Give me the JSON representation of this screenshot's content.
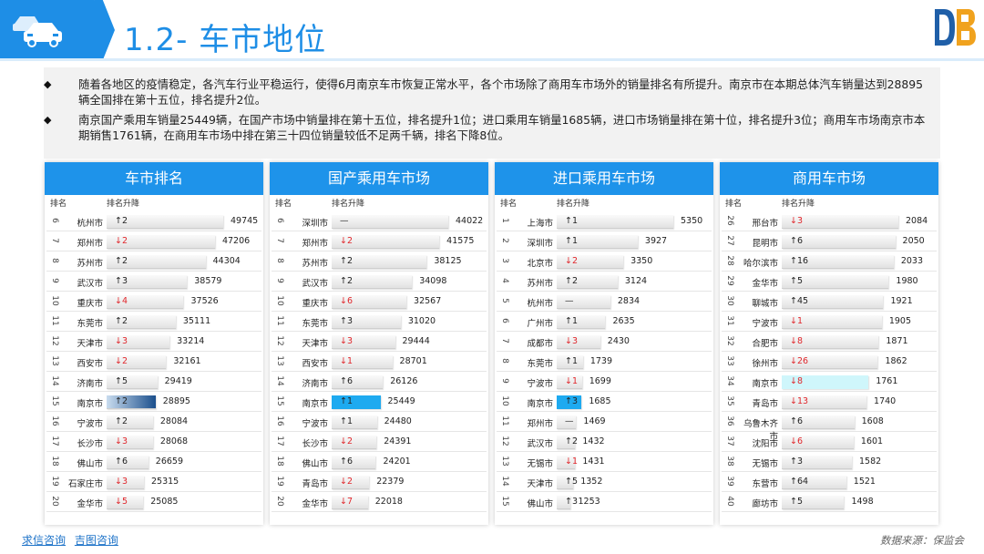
{
  "header": {
    "title": "1.2- 车市地位"
  },
  "intro": {
    "paragraphs": [
      "随着各地区的疫情稳定，各汽车行业平稳运行，使得6月南京车市恢复正常水平，各个市场除了商用车市场外的销量排名有所提升。南京市在本期总体汽车销量达到28895辆全国排在第十五位，排名提升2位。",
      "南京国产乘用车销量25449辆，在国产市场中销量排在第十五位，排名提升1位；进口乘用车销量1685辆，进口市场销量排在第十位，排名提升3位；商用车市场南京市本期销售1761辆，在商用车市场中排在第三十四位销量较低不足两千辆，排名下降8位。"
    ]
  },
  "panels": [
    {
      "title": "车市排名",
      "col_rank": "排名",
      "col_change": "排名升降",
      "highlight": "dark",
      "rows": [
        {
          "rank": "6",
          "city": "杭州市",
          "change": "↑2",
          "dir": "up",
          "value": 49745
        },
        {
          "rank": "7",
          "city": "郑州市",
          "change": "↓2",
          "dir": "down",
          "value": 47206
        },
        {
          "rank": "8",
          "city": "苏州市",
          "change": "↑2",
          "dir": "up",
          "value": 44304
        },
        {
          "rank": "9",
          "city": "武汉市",
          "change": "↑3",
          "dir": "up",
          "value": 38579
        },
        {
          "rank": "10",
          "city": "重庆市",
          "change": "↓4",
          "dir": "down",
          "value": 37526
        },
        {
          "rank": "11",
          "city": "东莞市",
          "change": "↑2",
          "dir": "up",
          "value": 35111
        },
        {
          "rank": "12",
          "city": "天津市",
          "change": "↓3",
          "dir": "down",
          "value": 33214
        },
        {
          "rank": "13",
          "city": "西安市",
          "change": "↓2",
          "dir": "down",
          "value": 32161
        },
        {
          "rank": "14",
          "city": "济南市",
          "change": "↑5",
          "dir": "up",
          "value": 29419
        },
        {
          "rank": "15",
          "city": "南京市",
          "change": "↑2",
          "dir": "up",
          "value": 28895,
          "hl": true
        },
        {
          "rank": "16",
          "city": "宁波市",
          "change": "↑2",
          "dir": "up",
          "value": 28084
        },
        {
          "rank": "17",
          "city": "长沙市",
          "change": "↓3",
          "dir": "down",
          "value": 28068
        },
        {
          "rank": "18",
          "city": "佛山市",
          "change": "↑6",
          "dir": "up",
          "value": 26659
        },
        {
          "rank": "19",
          "city": "石家庄市",
          "change": "↓3",
          "dir": "down",
          "value": 25315
        },
        {
          "rank": "20",
          "city": "金华市",
          "change": "↓5",
          "dir": "down",
          "value": 25085
        }
      ]
    },
    {
      "title": "国产乘用车市场",
      "col_rank": "排名",
      "col_change": "排名升降",
      "highlight": "blue",
      "rows": [
        {
          "rank": "6",
          "city": "深圳市",
          "change": "—",
          "dir": "flat",
          "value": 44022
        },
        {
          "rank": "7",
          "city": "郑州市",
          "change": "↓2",
          "dir": "down",
          "value": 41575
        },
        {
          "rank": "8",
          "city": "苏州市",
          "change": "↑2",
          "dir": "up",
          "value": 38125
        },
        {
          "rank": "9",
          "city": "武汉市",
          "change": "↑2",
          "dir": "up",
          "value": 34098
        },
        {
          "rank": "10",
          "city": "重庆市",
          "change": "↓6",
          "dir": "down",
          "value": 32567
        },
        {
          "rank": "11",
          "city": "东莞市",
          "change": "↑3",
          "dir": "up",
          "value": 31020
        },
        {
          "rank": "12",
          "city": "天津市",
          "change": "↓3",
          "dir": "down",
          "value": 29444
        },
        {
          "rank": "13",
          "city": "西安市",
          "change": "↓1",
          "dir": "down",
          "value": 28701
        },
        {
          "rank": "14",
          "city": "济南市",
          "change": "↑6",
          "dir": "up",
          "value": 26126
        },
        {
          "rank": "15",
          "city": "南京市",
          "change": "↑1",
          "dir": "up",
          "value": 25449,
          "hl": true
        },
        {
          "rank": "16",
          "city": "宁波市",
          "change": "↑1",
          "dir": "up",
          "value": 24480
        },
        {
          "rank": "17",
          "city": "长沙市",
          "change": "↓2",
          "dir": "down",
          "value": 24391
        },
        {
          "rank": "18",
          "city": "佛山市",
          "change": "↑6",
          "dir": "up",
          "value": 24201
        },
        {
          "rank": "19",
          "city": "青岛市",
          "change": "↓2",
          "dir": "down",
          "value": 22379
        },
        {
          "rank": "20",
          "city": "金华市",
          "change": "↓7",
          "dir": "down",
          "value": 22018
        }
      ]
    },
    {
      "title": "进口乘用车市场",
      "col_rank": "排名",
      "col_change": "排名升降",
      "highlight": "blue",
      "rows": [
        {
          "rank": "1",
          "city": "上海市",
          "change": "↑1",
          "dir": "up",
          "value": 5350
        },
        {
          "rank": "2",
          "city": "深圳市",
          "change": "↑1",
          "dir": "up",
          "value": 3927
        },
        {
          "rank": "3",
          "city": "北京市",
          "change": "↓2",
          "dir": "down",
          "value": 3350
        },
        {
          "rank": "4",
          "city": "苏州市",
          "change": "↑2",
          "dir": "up",
          "value": 3124
        },
        {
          "rank": "5",
          "city": "杭州市",
          "change": "—",
          "dir": "flat",
          "value": 2834
        },
        {
          "rank": "6",
          "city": "广州市",
          "change": "↑1",
          "dir": "up",
          "value": 2635
        },
        {
          "rank": "7",
          "city": "成都市",
          "change": "↓3",
          "dir": "down",
          "value": 2430
        },
        {
          "rank": "8",
          "city": "东莞市",
          "change": "↑1",
          "dir": "up",
          "value": 1739
        },
        {
          "rank": "9",
          "city": "宁波市",
          "change": "↓1",
          "dir": "down",
          "value": 1699
        },
        {
          "rank": "10",
          "city": "南京市",
          "change": "↑3",
          "dir": "up",
          "value": 1685,
          "hl": true
        },
        {
          "rank": "11",
          "city": "郑州市",
          "change": "—",
          "dir": "flat",
          "value": 1469
        },
        {
          "rank": "12",
          "city": "武汉市",
          "change": "↑2",
          "dir": "up",
          "value": 1432
        },
        {
          "rank": "13",
          "city": "无锡市",
          "change": "↓1",
          "dir": "down",
          "value": 1431
        },
        {
          "rank": "14",
          "city": "天津市",
          "change": "↑5",
          "dir": "up",
          "value": 1352
        },
        {
          "rank": "15",
          "city": "佛山市",
          "change": "↑3",
          "dir": "up",
          "value": 1253
        }
      ]
    },
    {
      "title": "商用车市场",
      "col_rank": "排名",
      "col_change": "排名升降",
      "highlight": "cyan",
      "rows": [
        {
          "rank": "26",
          "city": "邢台市",
          "change": "↓3",
          "dir": "down",
          "value": 2084
        },
        {
          "rank": "27",
          "city": "昆明市",
          "change": "↑6",
          "dir": "up",
          "value": 2050
        },
        {
          "rank": "28",
          "city": "哈尔滨市",
          "change": "↑16",
          "dir": "up",
          "value": 2033
        },
        {
          "rank": "29",
          "city": "金华市",
          "change": "↑5",
          "dir": "up",
          "value": 1980
        },
        {
          "rank": "30",
          "city": "聊城市",
          "change": "↑45",
          "dir": "up",
          "value": 1921
        },
        {
          "rank": "31",
          "city": "宁波市",
          "change": "↓1",
          "dir": "down",
          "value": 1905
        },
        {
          "rank": "32",
          "city": "合肥市",
          "change": "↓8",
          "dir": "down",
          "value": 1871
        },
        {
          "rank": "33",
          "city": "徐州市",
          "change": "↓26",
          "dir": "down",
          "value": 1862
        },
        {
          "rank": "34",
          "city": "南京市",
          "change": "↓8",
          "dir": "down",
          "value": 1761,
          "hl": true
        },
        {
          "rank": "35",
          "city": "青岛市",
          "change": "↓13",
          "dir": "down",
          "value": 1740
        },
        {
          "rank": "36",
          "city": "乌鲁木齐市",
          "change": "↑6",
          "dir": "up",
          "value": 1608
        },
        {
          "rank": "37",
          "city": "沈阳市",
          "change": "↓6",
          "dir": "down",
          "value": 1601
        },
        {
          "rank": "38",
          "city": "无锡市",
          "change": "↑3",
          "dir": "up",
          "value": 1582
        },
        {
          "rank": "39",
          "city": "东营市",
          "change": "↑64",
          "dir": "up",
          "value": 1521
        },
        {
          "rank": "40",
          "city": "廊坊市",
          "change": "↑5",
          "dir": "up",
          "value": 1498
        }
      ]
    }
  ],
  "footer": {
    "link1": "求信咨询",
    "link2": "吉图咨询",
    "source": "数据来源：保监会"
  }
}
